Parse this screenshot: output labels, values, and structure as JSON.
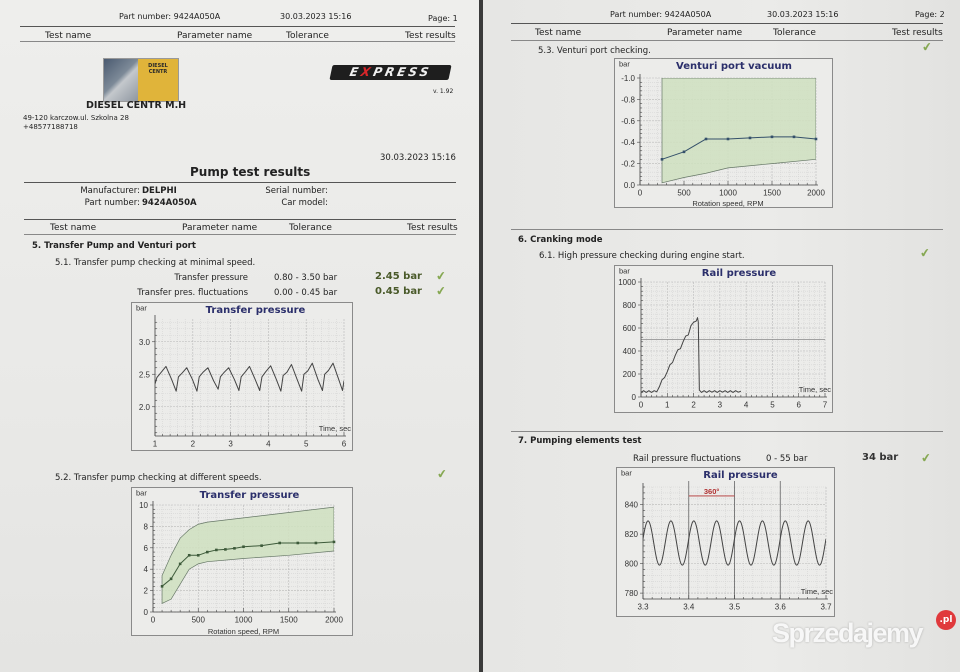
{
  "colors": {
    "band_fill": "#cfe0c0",
    "title": "#2b2f6b",
    "check": "#86a852",
    "result": "#4a5a2a",
    "marker_red": "#b03030"
  },
  "page1": {
    "header": {
      "part_number": "Part number: 9424A050A",
      "datetime": "30.03.2023  15:16",
      "page": "Page: 1"
    },
    "columns": {
      "test_name": "Test name",
      "parameter_name": "Parameter name",
      "tolerance": "Tolerance",
      "test_results": "Test results"
    },
    "company": {
      "logo_text_1": "DIESEL",
      "logo_text_2": "CENTR",
      "name": "DIESEL CENTR M.H",
      "address": "49-120 karczow.ul. Szkolna 28",
      "phone": "+48577188718"
    },
    "brand": {
      "logo_pre": "E",
      "logo_x": "X",
      "logo_post": "PRESS",
      "version": "v. 1.92"
    },
    "report_datetime": "30.03.2023  15:16",
    "title": "Pump test results",
    "info": {
      "manufacturer_label": "Manufacturer:",
      "manufacturer": "DELPHI",
      "part_label": "Part number:",
      "part": "9424A050A",
      "serial_label": "Serial number:",
      "serial": "",
      "car_label": "Car model:",
      "car": ""
    },
    "section5": {
      "title": "5. Transfer Pump and Venturi port",
      "s51": {
        "title": "5.1. Transfer pump checking at minimal speed.",
        "rows": [
          {
            "parameter": "Transfer pressure",
            "tolerance": "0.80 - 3.50 bar",
            "result": "2.45 bar",
            "status": "pass"
          },
          {
            "parameter": "Transfer pres. fluctuations",
            "tolerance": "0.00 - 0.45 bar",
            "result": "0.45 bar",
            "status": "pass"
          }
        ]
      },
      "s52": {
        "title": "5.2. Transfer pump checking at different speeds.",
        "status": "pass"
      }
    }
  },
  "page2": {
    "header": {
      "part_number": "Part number: 9424A050A",
      "datetime": "30.03.2023  15:16",
      "page": "Page: 2"
    },
    "columns": {
      "test_name": "Test name",
      "parameter_name": "Parameter name",
      "tolerance": "Tolerance",
      "test_results": "Test results"
    },
    "s53": {
      "title": "5.3. Venturi port checking.",
      "status": "pass"
    },
    "section6": {
      "title": "6. Cranking mode",
      "s61": {
        "title": "6.1. High pressure checking during engine start.",
        "status": "pass"
      }
    },
    "section7": {
      "title": "7. Pumping elements test",
      "row": {
        "parameter": "Rail pressure fluctuations",
        "tolerance": "0 - 55 bar",
        "result": "34 bar",
        "status": "pass"
      }
    }
  },
  "watermark": {
    "text": "Sprzedajemy",
    "suffix": ".pl"
  },
  "chart_data": [
    {
      "id": "c1",
      "type": "line",
      "title": "Transfer pressure",
      "ylabel": "bar",
      "xlabel": "Time, sec",
      "xlim": [
        1,
        6
      ],
      "ylim": [
        1.55,
        3.35
      ],
      "xticks": [
        1,
        2,
        3,
        4,
        5,
        6
      ],
      "yticks": [
        2.0,
        2.5,
        3.0
      ],
      "ytick_labels": [
        "2.0",
        "2.5",
        "3.0"
      ],
      "grid": true,
      "series": [
        {
          "color": "#444444",
          "points": [
            [
              1.0,
              2.35
            ],
            [
              1.05,
              2.45
            ],
            [
              1.15,
              2.52
            ],
            [
              1.29,
              2.62
            ],
            [
              1.44,
              2.42
            ],
            [
              1.56,
              2.24
            ],
            [
              1.62,
              2.46
            ],
            [
              1.72,
              2.52
            ],
            [
              1.84,
              2.6
            ],
            [
              1.99,
              2.42
            ],
            [
              2.11,
              2.24
            ],
            [
              2.17,
              2.46
            ],
            [
              2.27,
              2.53
            ],
            [
              2.4,
              2.6
            ],
            [
              2.55,
              2.4
            ],
            [
              2.67,
              2.27
            ],
            [
              2.73,
              2.46
            ],
            [
              2.83,
              2.53
            ],
            [
              2.95,
              2.6
            ],
            [
              3.1,
              2.42
            ],
            [
              3.22,
              2.25
            ],
            [
              3.28,
              2.46
            ],
            [
              3.38,
              2.53
            ],
            [
              3.5,
              2.62
            ],
            [
              3.65,
              2.42
            ],
            [
              3.77,
              2.25
            ],
            [
              3.83,
              2.46
            ],
            [
              3.93,
              2.54
            ],
            [
              4.06,
              2.63
            ],
            [
              4.21,
              2.42
            ],
            [
              4.33,
              2.24
            ],
            [
              4.39,
              2.48
            ],
            [
              4.49,
              2.53
            ],
            [
              4.61,
              2.65
            ],
            [
              4.76,
              2.42
            ],
            [
              4.88,
              2.24
            ],
            [
              4.94,
              2.5
            ],
            [
              5.04,
              2.55
            ],
            [
              5.16,
              2.67
            ],
            [
              5.31,
              2.42
            ],
            [
              5.43,
              2.25
            ],
            [
              5.49,
              2.5
            ],
            [
              5.59,
              2.56
            ],
            [
              5.71,
              2.67
            ],
            [
              5.86,
              2.42
            ],
            [
              5.96,
              2.25
            ],
            [
              6.0,
              2.4
            ]
          ]
        }
      ]
    },
    {
      "id": "c2",
      "type": "line",
      "title": "Transfer pressure",
      "ylabel": "bar",
      "xlabel": "Rotation speed, RPM",
      "xlim": [
        0,
        2000
      ],
      "ylim": [
        0,
        10
      ],
      "xticks": [
        0,
        500,
        1000,
        1500,
        2000
      ],
      "yticks": [
        0,
        2,
        4,
        6,
        8,
        10
      ],
      "ytick_labels": [
        "0",
        "2",
        "4",
        "6",
        "8",
        "10"
      ],
      "grid": true,
      "band": {
        "upper": [
          [
            100,
            3.4
          ],
          [
            200,
            5.3
          ],
          [
            300,
            6.9
          ],
          [
            400,
            7.7
          ],
          [
            500,
            8.2
          ],
          [
            600,
            8.4
          ],
          [
            1000,
            8.8
          ],
          [
            1500,
            9.3
          ],
          [
            2000,
            9.8
          ]
        ],
        "lower": [
          [
            100,
            0.8
          ],
          [
            200,
            1.2
          ],
          [
            300,
            2.6
          ],
          [
            400,
            4.0
          ],
          [
            500,
            4.5
          ],
          [
            600,
            4.7
          ],
          [
            1000,
            5.0
          ],
          [
            1500,
            5.3
          ],
          [
            2000,
            5.7
          ]
        ]
      },
      "series": [
        {
          "color": "#3d5a3a",
          "markers": true,
          "points": [
            [
              100,
              2.4
            ],
            [
              200,
              3.1
            ],
            [
              300,
              4.5
            ],
            [
              400,
              5.3
            ],
            [
              500,
              5.3
            ],
            [
              600,
              5.6
            ],
            [
              700,
              5.8
            ],
            [
              800,
              5.85
            ],
            [
              900,
              5.95
            ],
            [
              1000,
              6.1
            ],
            [
              1200,
              6.2
            ],
            [
              1400,
              6.45
            ],
            [
              1600,
              6.45
            ],
            [
              1800,
              6.45
            ],
            [
              2000,
              6.55
            ]
          ]
        }
      ]
    },
    {
      "id": "c3",
      "type": "line",
      "title": "Venturi port vacuum",
      "ylabel": "bar",
      "xlabel": "Rotation speed, RPM",
      "xlim": [
        0,
        2000
      ],
      "ylim": [
        0.0,
        -1.0
      ],
      "xticks": [
        0,
        500,
        1000,
        1500,
        2000
      ],
      "yticks": [
        0,
        -0.2,
        -0.4,
        -0.6,
        -0.8,
        -1.0
      ],
      "ytick_labels": [
        "0.0",
        "-0.2",
        "-0.4",
        "-0.6",
        "-0.8",
        "-1.0"
      ],
      "grid": true,
      "band": {
        "upper": [
          [
            250,
            -1.0
          ],
          [
            2000,
            -1.0
          ]
        ],
        "lower": [
          [
            250,
            -0.02
          ],
          [
            500,
            -0.07
          ],
          [
            750,
            -0.11
          ],
          [
            1000,
            -0.16
          ],
          [
            1500,
            -0.2
          ],
          [
            2000,
            -0.24
          ]
        ]
      },
      "series": [
        {
          "color": "#34506a",
          "markers": true,
          "points": [
            [
              250,
              -0.24
            ],
            [
              500,
              -0.31
            ],
            [
              750,
              -0.43
            ],
            [
              1000,
              -0.43
            ],
            [
              1250,
              -0.44
            ],
            [
              1500,
              -0.45
            ],
            [
              1750,
              -0.45
            ],
            [
              2000,
              -0.43
            ]
          ]
        }
      ]
    },
    {
      "id": "c4",
      "type": "line",
      "title": "Rail pressure",
      "ylabel": "bar",
      "xlabel": "Time, sec",
      "xlim": [
        0,
        7
      ],
      "ylim": [
        0,
        1000
      ],
      "xticks": [
        0,
        1,
        2,
        3,
        4,
        5,
        6,
        7
      ],
      "yticks": [
        0,
        200,
        400,
        600,
        800,
        1000
      ],
      "ytick_labels": [
        "0",
        "200",
        "400",
        "600",
        "800",
        "1000"
      ],
      "grid": true,
      "reference_lines_y": [
        500
      ],
      "series": [
        {
          "color": "#444444",
          "points": [
            [
              0,
              40
            ],
            [
              0.1,
              55
            ],
            [
              0.2,
              40
            ],
            [
              0.3,
              55
            ],
            [
              0.4,
              40
            ],
            [
              0.5,
              55
            ],
            [
              0.6,
              45
            ],
            [
              0.7,
              90
            ],
            [
              0.8,
              150
            ],
            [
              0.9,
              170
            ],
            [
              1.0,
              220
            ],
            [
              1.1,
              280
            ],
            [
              1.2,
              300
            ],
            [
              1.3,
              360
            ],
            [
              1.4,
              410
            ],
            [
              1.5,
              420
            ],
            [
              1.6,
              480
            ],
            [
              1.7,
              530
            ],
            [
              1.8,
              540
            ],
            [
              1.9,
              620
            ],
            [
              2.0,
              650
            ],
            [
              2.1,
              660
            ],
            [
              2.15,
              690
            ],
            [
              2.18,
              650
            ],
            [
              2.22,
              60
            ],
            [
              2.3,
              40
            ],
            [
              2.4,
              55
            ],
            [
              2.5,
              40
            ],
            [
              2.6,
              55
            ],
            [
              2.7,
              42
            ],
            [
              2.8,
              55
            ],
            [
              2.9,
              40
            ],
            [
              3.0,
              55
            ],
            [
              3.1,
              42
            ],
            [
              3.2,
              55
            ],
            [
              3.3,
              40
            ],
            [
              3.4,
              55
            ],
            [
              3.5,
              40
            ],
            [
              3.6,
              55
            ],
            [
              3.7,
              42
            ],
            [
              3.8,
              50
            ]
          ]
        }
      ]
    },
    {
      "id": "c5",
      "type": "line",
      "title": "Rail pressure",
      "ylabel": "bar",
      "xlabel": "Time, sec",
      "xlim": [
        3.3,
        3.7
      ],
      "ylim": [
        776,
        852
      ],
      "xticks": [
        3.3,
        3.4,
        3.5,
        3.6,
        3.7
      ],
      "yticks": [
        780,
        800,
        820,
        840
      ],
      "ytick_labels": [
        "780",
        "800",
        "820",
        "840"
      ],
      "grid": true,
      "reference_lines_x": [
        3.4,
        3.5,
        3.6
      ],
      "annotation": {
        "text": "360°",
        "x_from": 3.4,
        "x_to": 3.5,
        "y": 848
      },
      "series": [
        {
          "color": "#444444",
          "waveform": {
            "mean": 814,
            "amplitude": 15,
            "period": 0.05,
            "first_peak": 3.311
          }
        }
      ]
    }
  ]
}
